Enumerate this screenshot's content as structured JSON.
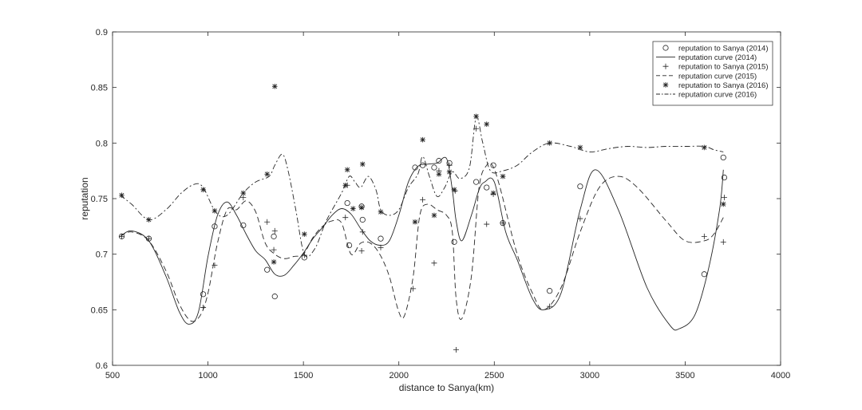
{
  "chart_data": {
    "type": "scatter",
    "title": "",
    "xlabel": "distance to Sanya(km)",
    "ylabel": "reputation",
    "xlim": [
      500,
      4000
    ],
    "ylim": [
      0.6,
      0.9
    ],
    "xticks": [
      500,
      1000,
      1500,
      2000,
      2500,
      3000,
      3500,
      4000
    ],
    "xtick_labels": [
      "500",
      "1000",
      "1500",
      "2000",
      "2500",
      "3000",
      "3500",
      "4000"
    ],
    "yticks": [
      0.6,
      0.65,
      0.7,
      0.75,
      0.8,
      0.85,
      0.9
    ],
    "ytick_labels": [
      "0.6",
      "0.65",
      "0.7",
      "0.75",
      "0.8",
      "0.85",
      "0.9"
    ],
    "grid": false,
    "legend": "top-right",
    "series": [
      {
        "name": "reputation to Sanya (2014)",
        "kind": "scatter",
        "marker": "circle",
        "x": [
          548,
          690,
          975,
          1035,
          1185,
          1310,
          1345,
          1350,
          1505,
          1730,
          1740,
          1805,
          1810,
          1905,
          2085,
          2125,
          2185,
          2210,
          2265,
          2290,
          2405,
          2460,
          2495,
          2545,
          2790,
          2950,
          3600,
          3700,
          3705
        ],
        "y": [
          0.716,
          0.714,
          0.664,
          0.725,
          0.726,
          0.686,
          0.716,
          0.662,
          0.697,
          0.746,
          0.708,
          0.743,
          0.731,
          0.714,
          0.778,
          0.78,
          0.778,
          0.784,
          0.782,
          0.711,
          0.765,
          0.76,
          0.78,
          0.728,
          0.667,
          0.761,
          0.682,
          0.787,
          0.769
        ]
      },
      {
        "name": "reputation curve (2014)",
        "kind": "line",
        "style": "solid",
        "x": [
          540,
          600,
          690,
          780,
          850,
          900,
          950,
          1000,
          1050,
          1100,
          1150,
          1200,
          1250,
          1300,
          1350,
          1400,
          1450,
          1500,
          1550,
          1600,
          1650,
          1700,
          1750,
          1800,
          1850,
          1900,
          1950,
          2000,
          2050,
          2100,
          2150,
          2200,
          2250,
          2280,
          2300,
          2330,
          2380,
          2420,
          2450,
          2500,
          2560,
          2620,
          2700,
          2760,
          2850,
          2950,
          3030,
          3150,
          3300,
          3420,
          3470,
          3550,
          3620,
          3680,
          3700
        ],
        "y": [
          0.716,
          0.721,
          0.712,
          0.68,
          0.648,
          0.637,
          0.648,
          0.698,
          0.735,
          0.747,
          0.735,
          0.718,
          0.703,
          0.695,
          0.682,
          0.681,
          0.69,
          0.701,
          0.714,
          0.724,
          0.735,
          0.741,
          0.736,
          0.723,
          0.712,
          0.708,
          0.712,
          0.735,
          0.765,
          0.779,
          0.781,
          0.782,
          0.786,
          0.758,
          0.73,
          0.712,
          0.735,
          0.758,
          0.765,
          0.765,
          0.72,
          0.695,
          0.66,
          0.65,
          0.665,
          0.74,
          0.776,
          0.74,
          0.67,
          0.636,
          0.633,
          0.645,
          0.685,
          0.74,
          0.776
        ]
      },
      {
        "name": "reputation to Sanya (2015)",
        "kind": "scatter",
        "marker": "plus",
        "x": [
          548,
          690,
          975,
          1035,
          1185,
          1310,
          1345,
          1350,
          1505,
          1720,
          1730,
          1805,
          1810,
          1905,
          2075,
          2125,
          2185,
          2210,
          2265,
          2295,
          2300,
          2405,
          2460,
          2495,
          2545,
          2790,
          2950,
          3600,
          3700,
          3705
        ],
        "y": [
          0.716,
          0.714,
          0.652,
          0.69,
          0.751,
          0.729,
          0.704,
          0.721,
          0.699,
          0.733,
          0.762,
          0.703,
          0.72,
          0.706,
          0.669,
          0.749,
          0.692,
          0.775,
          0.78,
          0.757,
          0.614,
          0.813,
          0.727,
          0.754,
          0.728,
          0.653,
          0.732,
          0.716,
          0.711,
          0.751
        ]
      },
      {
        "name": "reputation curve (2015)",
        "kind": "line",
        "style": "dashed",
        "x": [
          540,
          600,
          690,
          780,
          850,
          910,
          960,
          1000,
          1050,
          1100,
          1150,
          1200,
          1250,
          1300,
          1350,
          1400,
          1450,
          1500,
          1550,
          1600,
          1650,
          1700,
          1750,
          1800,
          1850,
          1900,
          1950,
          2000,
          2030,
          2075,
          2110,
          2150,
          2200,
          2250,
          2280,
          2300,
          2330,
          2380,
          2420,
          2460,
          2490,
          2530,
          2620,
          2700,
          2760,
          2850,
          2950,
          3050,
          3150,
          3250,
          3400,
          3500,
          3600,
          3650,
          3700
        ],
        "y": [
          0.716,
          0.72,
          0.712,
          0.685,
          0.655,
          0.64,
          0.645,
          0.665,
          0.71,
          0.74,
          0.74,
          0.748,
          0.738,
          0.71,
          0.7,
          0.696,
          0.698,
          0.7,
          0.715,
          0.725,
          0.73,
          0.728,
          0.7,
          0.71,
          0.71,
          0.7,
          0.68,
          0.648,
          0.645,
          0.68,
          0.735,
          0.745,
          0.74,
          0.735,
          0.72,
          0.66,
          0.642,
          0.68,
          0.76,
          0.78,
          0.78,
          0.76,
          0.7,
          0.665,
          0.65,
          0.67,
          0.72,
          0.76,
          0.77,
          0.76,
          0.73,
          0.712,
          0.712,
          0.718,
          0.733
        ]
      },
      {
        "name": "reputation to Sanya (2016)",
        "kind": "scatter",
        "marker": "asterisk",
        "x": [
          548,
          690,
          975,
          1035,
          1185,
          1310,
          1345,
          1350,
          1505,
          1720,
          1730,
          1760,
          1805,
          1810,
          1905,
          2085,
          2125,
          2185,
          2210,
          2265,
          2290,
          2405,
          2460,
          2495,
          2545,
          2790,
          2950,
          3600,
          3700
        ],
        "y": [
          0.753,
          0.731,
          0.758,
          0.739,
          0.755,
          0.772,
          0.693,
          0.851,
          0.718,
          0.762,
          0.776,
          0.741,
          0.742,
          0.781,
          0.738,
          0.729,
          0.803,
          0.735,
          0.772,
          0.774,
          0.758,
          0.824,
          0.817,
          0.755,
          0.77,
          0.8,
          0.796,
          0.796,
          0.745
        ]
      },
      {
        "name": "reputation curve (2016)",
        "kind": "line",
        "style": "dashdot",
        "x": [
          540,
          600,
          690,
          780,
          860,
          930,
          975,
          1040,
          1100,
          1185,
          1250,
          1320,
          1350,
          1390,
          1420,
          1460,
          1505,
          1560,
          1620,
          1700,
          1740,
          1770,
          1800,
          1840,
          1880,
          1905,
          1950,
          2000,
          2050,
          2100,
          2125,
          2160,
          2200,
          2240,
          2280,
          2320,
          2370,
          2405,
          2440,
          2480,
          2545,
          2620,
          2700,
          2790,
          2900,
          3000,
          3100,
          3200,
          3300,
          3400,
          3500,
          3600,
          3650,
          3700
        ],
        "y": [
          0.753,
          0.745,
          0.731,
          0.74,
          0.755,
          0.763,
          0.76,
          0.738,
          0.735,
          0.755,
          0.765,
          0.77,
          0.78,
          0.79,
          0.775,
          0.74,
          0.7,
          0.705,
          0.73,
          0.755,
          0.77,
          0.765,
          0.76,
          0.77,
          0.758,
          0.74,
          0.735,
          0.74,
          0.76,
          0.772,
          0.788,
          0.77,
          0.752,
          0.76,
          0.774,
          0.768,
          0.778,
          0.823,
          0.8,
          0.775,
          0.775,
          0.78,
          0.792,
          0.8,
          0.797,
          0.792,
          0.795,
          0.797,
          0.796,
          0.797,
          0.797,
          0.797,
          0.794,
          0.792
        ]
      }
    ]
  }
}
